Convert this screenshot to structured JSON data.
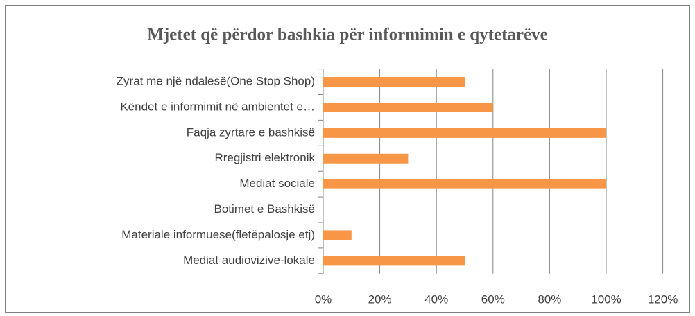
{
  "chart_data": {
    "type": "bar",
    "orientation": "horizontal",
    "title": "Mjetet që përdor bashkia për informimin e qytetarëve",
    "categories": [
      "Zyrat me një ndalesë(One Stop Shop)",
      "Këndet e informimit në ambientet e…",
      "Faqja zyrtare e bashkisë",
      "Rregjistri elektronik",
      "Mediat sociale",
      "Botimet e Bashkisë",
      "Materiale informuese(fletëpalosje etj)",
      "Mediat audiovizive-lokale"
    ],
    "values": [
      50,
      60,
      100,
      30,
      100,
      0,
      10,
      50
    ],
    "color": "#f79646",
    "xlim": [
      0,
      120
    ],
    "xticks": [
      {
        "value": 0,
        "label": "0%"
      },
      {
        "value": 20,
        "label": "20%"
      },
      {
        "value": 40,
        "label": "40%"
      },
      {
        "value": 60,
        "label": "60%"
      },
      {
        "value": 80,
        "label": "80%"
      },
      {
        "value": 100,
        "label": "100%"
      },
      {
        "value": 120,
        "label": "120%"
      }
    ],
    "grid": true
  }
}
